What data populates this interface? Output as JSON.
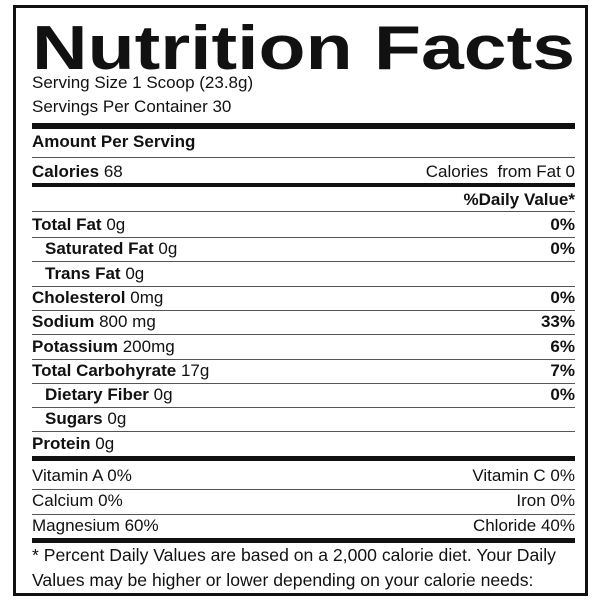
{
  "title": "Nutrition Facts",
  "serving_size": "Serving Size 1 Scoop (23.8g)",
  "servings_per_container": "Servings Per Container 30",
  "amount_per_serving": "Amount Per Serving",
  "calories": {
    "label": "Calories",
    "value": "68",
    "from_fat": "Calories  from Fat 0"
  },
  "daily_value_header": "%Daily Value*",
  "nutrients": [
    {
      "label": "Total Fat",
      "amount": "0g",
      "dv": "0%",
      "indent": false
    },
    {
      "label": "Saturated Fat",
      "amount": "0g",
      "dv": "0%",
      "indent": true
    },
    {
      "label": "Trans Fat",
      "amount": "0g",
      "dv": "",
      "indent": true
    },
    {
      "label": "Cholesterol",
      "amount": "0mg",
      "dv": "0%",
      "indent": false
    },
    {
      "label": "Sodium",
      "amount": "800 mg",
      "dv": "33%",
      "indent": false
    },
    {
      "label": "Potassium",
      "amount": "200mg",
      "dv": "6%",
      "indent": false
    },
    {
      "label": "Total Carbohyrate",
      "amount": "17g",
      "dv": "7%",
      "indent": false
    },
    {
      "label": "Dietary Fiber",
      "amount": "0g",
      "dv": "0%",
      "indent": true
    },
    {
      "label": "Sugars",
      "amount": "0g",
      "dv": "",
      "indent": true
    },
    {
      "label": "Protein",
      "amount": "0g",
      "dv": "",
      "indent": false
    }
  ],
  "vitamins": [
    {
      "left": "Vitamin A 0%",
      "right": "Vitamin C 0%"
    },
    {
      "left": "Calcium 0%",
      "right": "Iron 0%"
    },
    {
      "left": "Magnesium 60%",
      "right": "Chloride 40%"
    }
  ],
  "footnote": [
    "* Percent Daily Values are based on a 2,000 calorie diet. Your Daily",
    "Values may be higher or lower depending on your calorie needs:"
  ]
}
